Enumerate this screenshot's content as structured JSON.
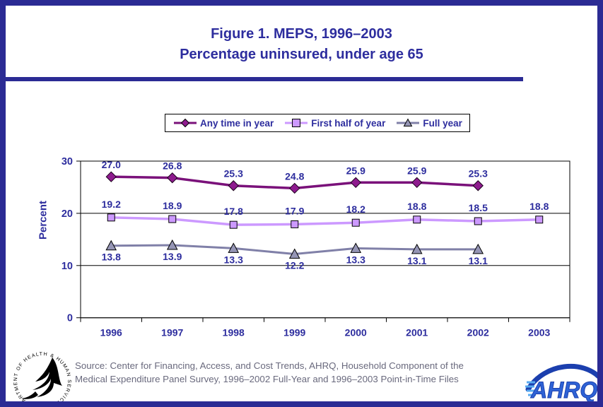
{
  "page": {
    "border_color": "#2B2B94",
    "navy_text_color": "#2D2D9E",
    "background": "#FFFFFF"
  },
  "title": {
    "line1": "Figure 1. MEPS, 1996–2003",
    "line2": "Percentage uninsured, under age 65"
  },
  "chart_data": {
    "type": "line",
    "title": "Figure 1. MEPS, 1996–2003 Percentage uninsured, under age 65",
    "categories": [
      "1996",
      "1997",
      "1998",
      "1999",
      "2000",
      "2001",
      "2002",
      "2003"
    ],
    "series": [
      {
        "name": "Any time in year",
        "values": [
          27.0,
          26.8,
          25.3,
          24.8,
          25.9,
          25.9,
          25.3,
          null
        ],
        "color": "#7A117A",
        "marker": "diamond",
        "marker_fill": "#8E1B8E"
      },
      {
        "name": "First half of year",
        "values": [
          19.2,
          18.9,
          17.8,
          17.9,
          18.2,
          18.8,
          18.5,
          18.8
        ],
        "color": "#CC99FF",
        "marker": "square",
        "marker_fill": "#CC99FF"
      },
      {
        "name": "Full year",
        "values": [
          13.8,
          13.9,
          13.3,
          12.2,
          13.3,
          13.1,
          13.1,
          null
        ],
        "color": "#8080A8",
        "marker": "triangle",
        "marker_fill": "#9595B5"
      }
    ],
    "xlabel": "",
    "ylabel": "Percent",
    "ylim": [
      0,
      30
    ],
    "yticks": [
      0,
      10,
      20,
      30
    ],
    "grid": true,
    "legend_position": "top",
    "data_labels": true,
    "label_color": "#2D2D9E",
    "axis_color": "#000000"
  },
  "footer": {
    "source_line1": "Source: Center for Financing, Access, and Cost Trends, AHRQ, Household Component of the",
    "source_line2": "Medical Expenditure Panel Survey, 1996–2002 Full-Year and 1996–2003 Point-in-Time Files",
    "source_color": "#69697D",
    "hhs_seal_text": "DEPARTMENT OF HEALTH & HUMAN SERVICES • USA",
    "ahrq_logo_text": "AHRQ"
  }
}
